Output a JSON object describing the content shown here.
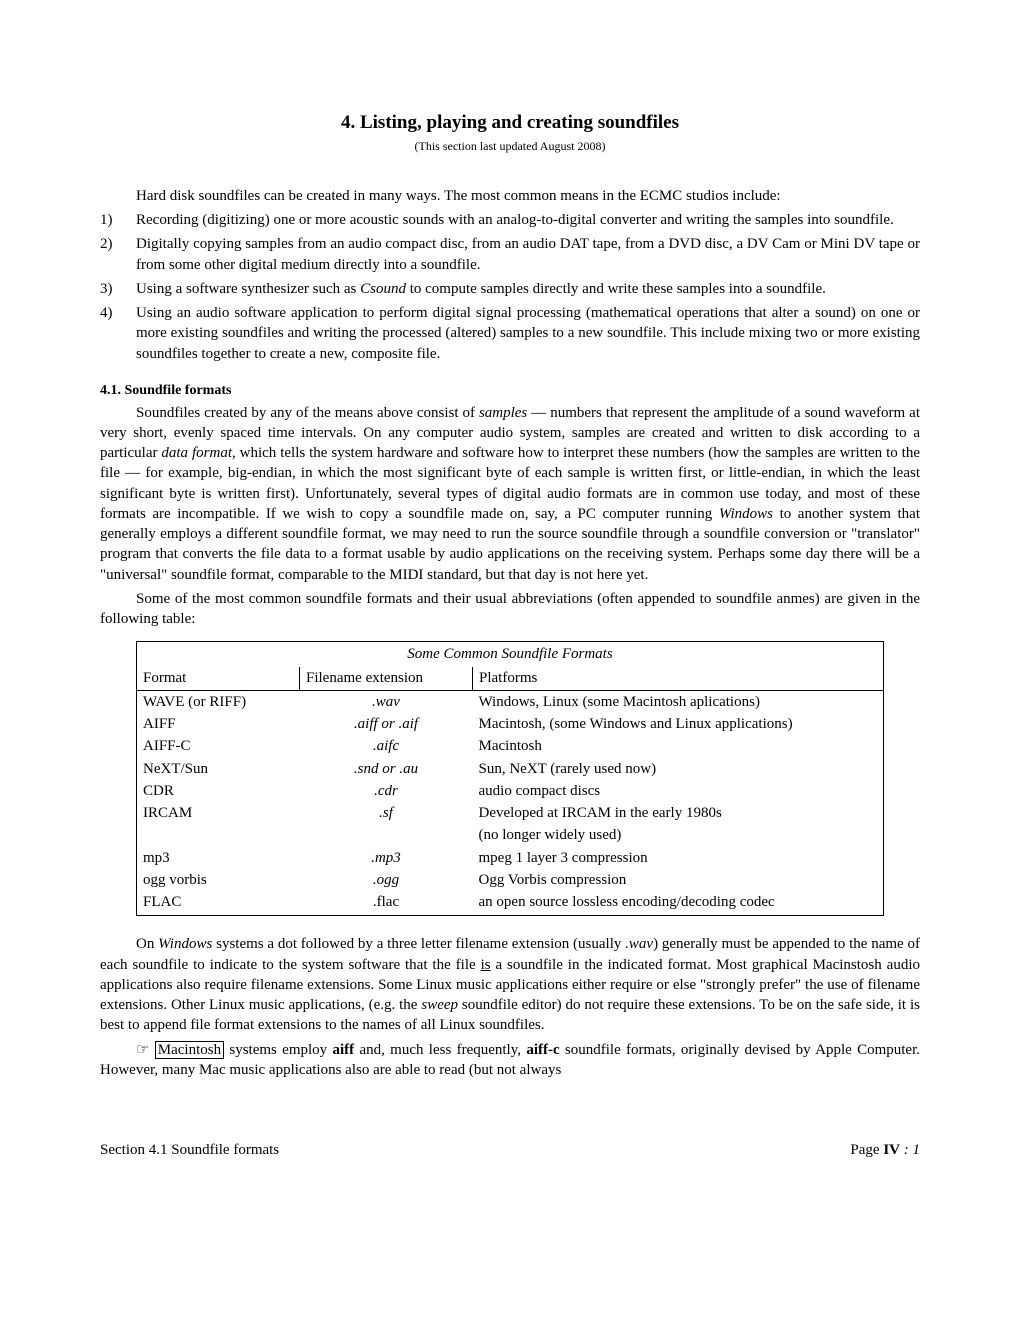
{
  "title": "4. Listing, playing and creating soundfiles",
  "subtitle": "(This section last updated August 2008)",
  "intro": "Hard disk soundfiles can be created in many ways. The most common means in the ECMC studios include:",
  "items": [
    {
      "n": "1)",
      "text": "Recording (digitizing) one or more acoustic sounds with an analog-to-digital converter and writing the samples into soundfile."
    },
    {
      "n": "2)",
      "text": "Digitally copying samples from an audio compact disc, from an audio DAT tape, from a DVD disc, a DV Cam or Mini DV tape or from some other digital medium directly into a soundfile."
    },
    {
      "n": "3)",
      "pre": "Using a software synthesizer such as ",
      "em": "Csound",
      "post": " to compute samples directly and write these samples into a soundfile."
    },
    {
      "n": "4)",
      "text": "Using an audio software application to perform digital signal processing (mathematical operations that alter a sound) on one or more existing soundfiles and writing the processed (altered) samples to a new soundfile. This include mixing two or more existing soundfiles together to create a new, composite file."
    }
  ],
  "sectionHead": "4.1.  Soundfile formats",
  "para1a": "Soundfiles created by any of the means above consist of ",
  "para1b": "samples",
  "para1c": " — numbers that represent the amplitude of a sound waveform at very short, evenly spaced time intervals.  On any computer audio system, samples are created and written to disk according to a particular ",
  "para1d": "data format",
  "para1e": ", which tells the system hardware and software how to interpret these numbers (how the samples are written to the file — for example, big-endian, in which the most significant byte of each sample is written first, or little-endian, in which the least significant byte is written first).  Unfortunately, several types of digital audio formats are in common use today, and most of these formats are incompatible.  If we wish to copy a soundfile made on, say, a PC computer running ",
  "para1f": "Windows",
  "para1g": " to another system that generally employs a different soundfile format, we may need to run the source soundfile through a soundfile conversion or \"translator\" program that converts the file data to a format usable by audio applications on the receiving system.  Perhaps some day there will be a \"universal\" soundfile format, comparable to the MIDI standard, but that day is not here yet.",
  "para2": "Some of the most common soundfile formats and their usual abbreviations (often appended to soundfile anmes) are given in the following table:",
  "table": {
    "caption": "Some Common Soundfile Formats",
    "headers": [
      "Format",
      "Filename extension",
      "Platforms"
    ],
    "rows": [
      [
        "WAVE (or RIFF)",
        ".wav",
        "Windows, Linux (some Macintosh aplications)"
      ],
      [
        "AIFF",
        ".aiff or .aif",
        "Macintosh, (some Windows and Linux applications)"
      ],
      [
        "AIFF-C",
        ".aifc",
        "Macintosh"
      ],
      [
        "NeXT/Sun",
        ".snd or .au",
        "Sun, NeXT (rarely used now)"
      ],
      [
        "CDR",
        ".cdr",
        "audio compact discs"
      ],
      [
        "IRCAM",
        ".sf",
        "Developed at IRCAM in the early 1980s"
      ],
      [
        "",
        "",
        "(no longer widely used)"
      ],
      [
        "mp3",
        ".mp3",
        "mpeg 1 layer 3 compression"
      ],
      [
        "ogg vorbis",
        ".ogg",
        "Ogg Vorbis compression"
      ],
      [
        "FLAC",
        ".flac",
        "an open source lossless encoding/decoding codec"
      ]
    ]
  },
  "para3a": "On ",
  "para3b": "Windows",
  "para3c": " systems a dot followed by a three letter filename extension (usually ",
  "para3d": ".wav",
  "para3e": ") generally must be appended to the name of each soundfile to indicate to the system software that the file ",
  "para3f": "is",
  "para3g": " a soundfile in the indicated format. Most graphical Macinstosh audio applications also require filename extensions. Some Linux music applications either require or else \"strongly prefer\" the use of filename extensions. Other Linux music applications, (e.g. the ",
  "para3h": "sweep",
  "para3i": " soundfile editor) do not require these extensions.  To be on the safe side, it is best to append file format extensions to the names of all Linux soundfiles.",
  "para4a": "☞ ",
  "para4b": "Macintosh",
  "para4c": " systems employ ",
  "para4d": "aiff",
  "para4e": " and, much less frequently, ",
  "para4f": "aiff-c",
  "para4g": " soundfile formats, originally devised by Apple Computer. However, many Mac music applications also are able to read (but not always",
  "footerLeft": "Section 4.1 Soundfile formats",
  "footerPage1": "Page ",
  "footerPage2": "IV",
  "footerPage3": " : 1"
}
